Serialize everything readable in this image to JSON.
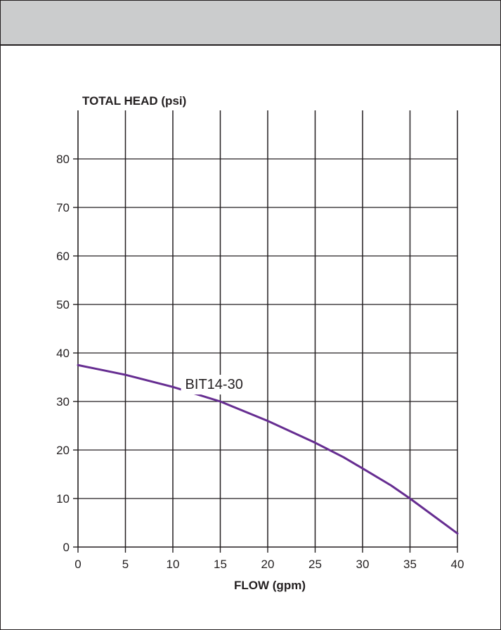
{
  "header": {
    "title": ""
  },
  "chart_data": {
    "type": "line",
    "xlabel": "FLOW (gpm)",
    "ylabel": "TOTAL HEAD (psi)",
    "xlim": [
      0,
      40
    ],
    "ylim": [
      0,
      90
    ],
    "x_ticks": [
      0,
      5,
      10,
      15,
      20,
      25,
      30,
      35,
      40
    ],
    "y_ticks": [
      0,
      10,
      20,
      30,
      40,
      50,
      60,
      70,
      80
    ],
    "grid": true,
    "series": [
      {
        "name": "BIT14-30",
        "color": "#662d91",
        "x": [
          0,
          5,
          10,
          15,
          20,
          25,
          28,
          30,
          33,
          35,
          40
        ],
        "y": [
          37.5,
          35.5,
          33,
          30,
          26,
          21.5,
          18.5,
          16.2,
          12.7,
          10,
          2.8
        ]
      }
    ]
  }
}
